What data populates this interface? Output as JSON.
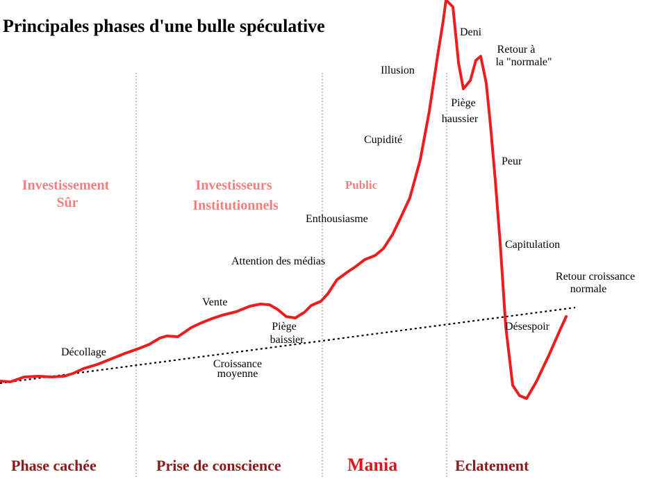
{
  "title": "Principales phases d'une bulle spéculative",
  "colors": {
    "curve": "#ee1c1c",
    "group": "#f08080",
    "phase": "#8b1a1a",
    "mania": "#e3151a",
    "trend": "#000000",
    "divider": "#a0522d"
  },
  "groups": {
    "safe": [
      "Investissement",
      "Sûr"
    ],
    "institutional": [
      "Investisseurs",
      "Institutionnels"
    ],
    "public": "Public"
  },
  "phases": {
    "hidden": "Phase cachée",
    "awareness": "Prise de conscience",
    "mania": "Mania",
    "blowoff": "Eclatement"
  },
  "labels": {
    "takeoff": "Décollage",
    "sale": "Vente",
    "bear_trap": [
      "Piège",
      "baissier"
    ],
    "media": "Attention des médias",
    "enthusiasm": "Enthousiasme",
    "greed": "Cupidité",
    "delusion": "Illusion",
    "denial": "Deni",
    "bull_trap": [
      "Piège",
      "haussier"
    ],
    "return_normal": [
      "Retour  à",
      "la \"normale\""
    ],
    "fear": "Peur",
    "capitulation": "Capitulation",
    "despair": "Désespoir",
    "return_growth": [
      "Retour croissance",
      "normale"
    ],
    "avg_growth": [
      "Croissance",
      "moyenne"
    ]
  }
}
